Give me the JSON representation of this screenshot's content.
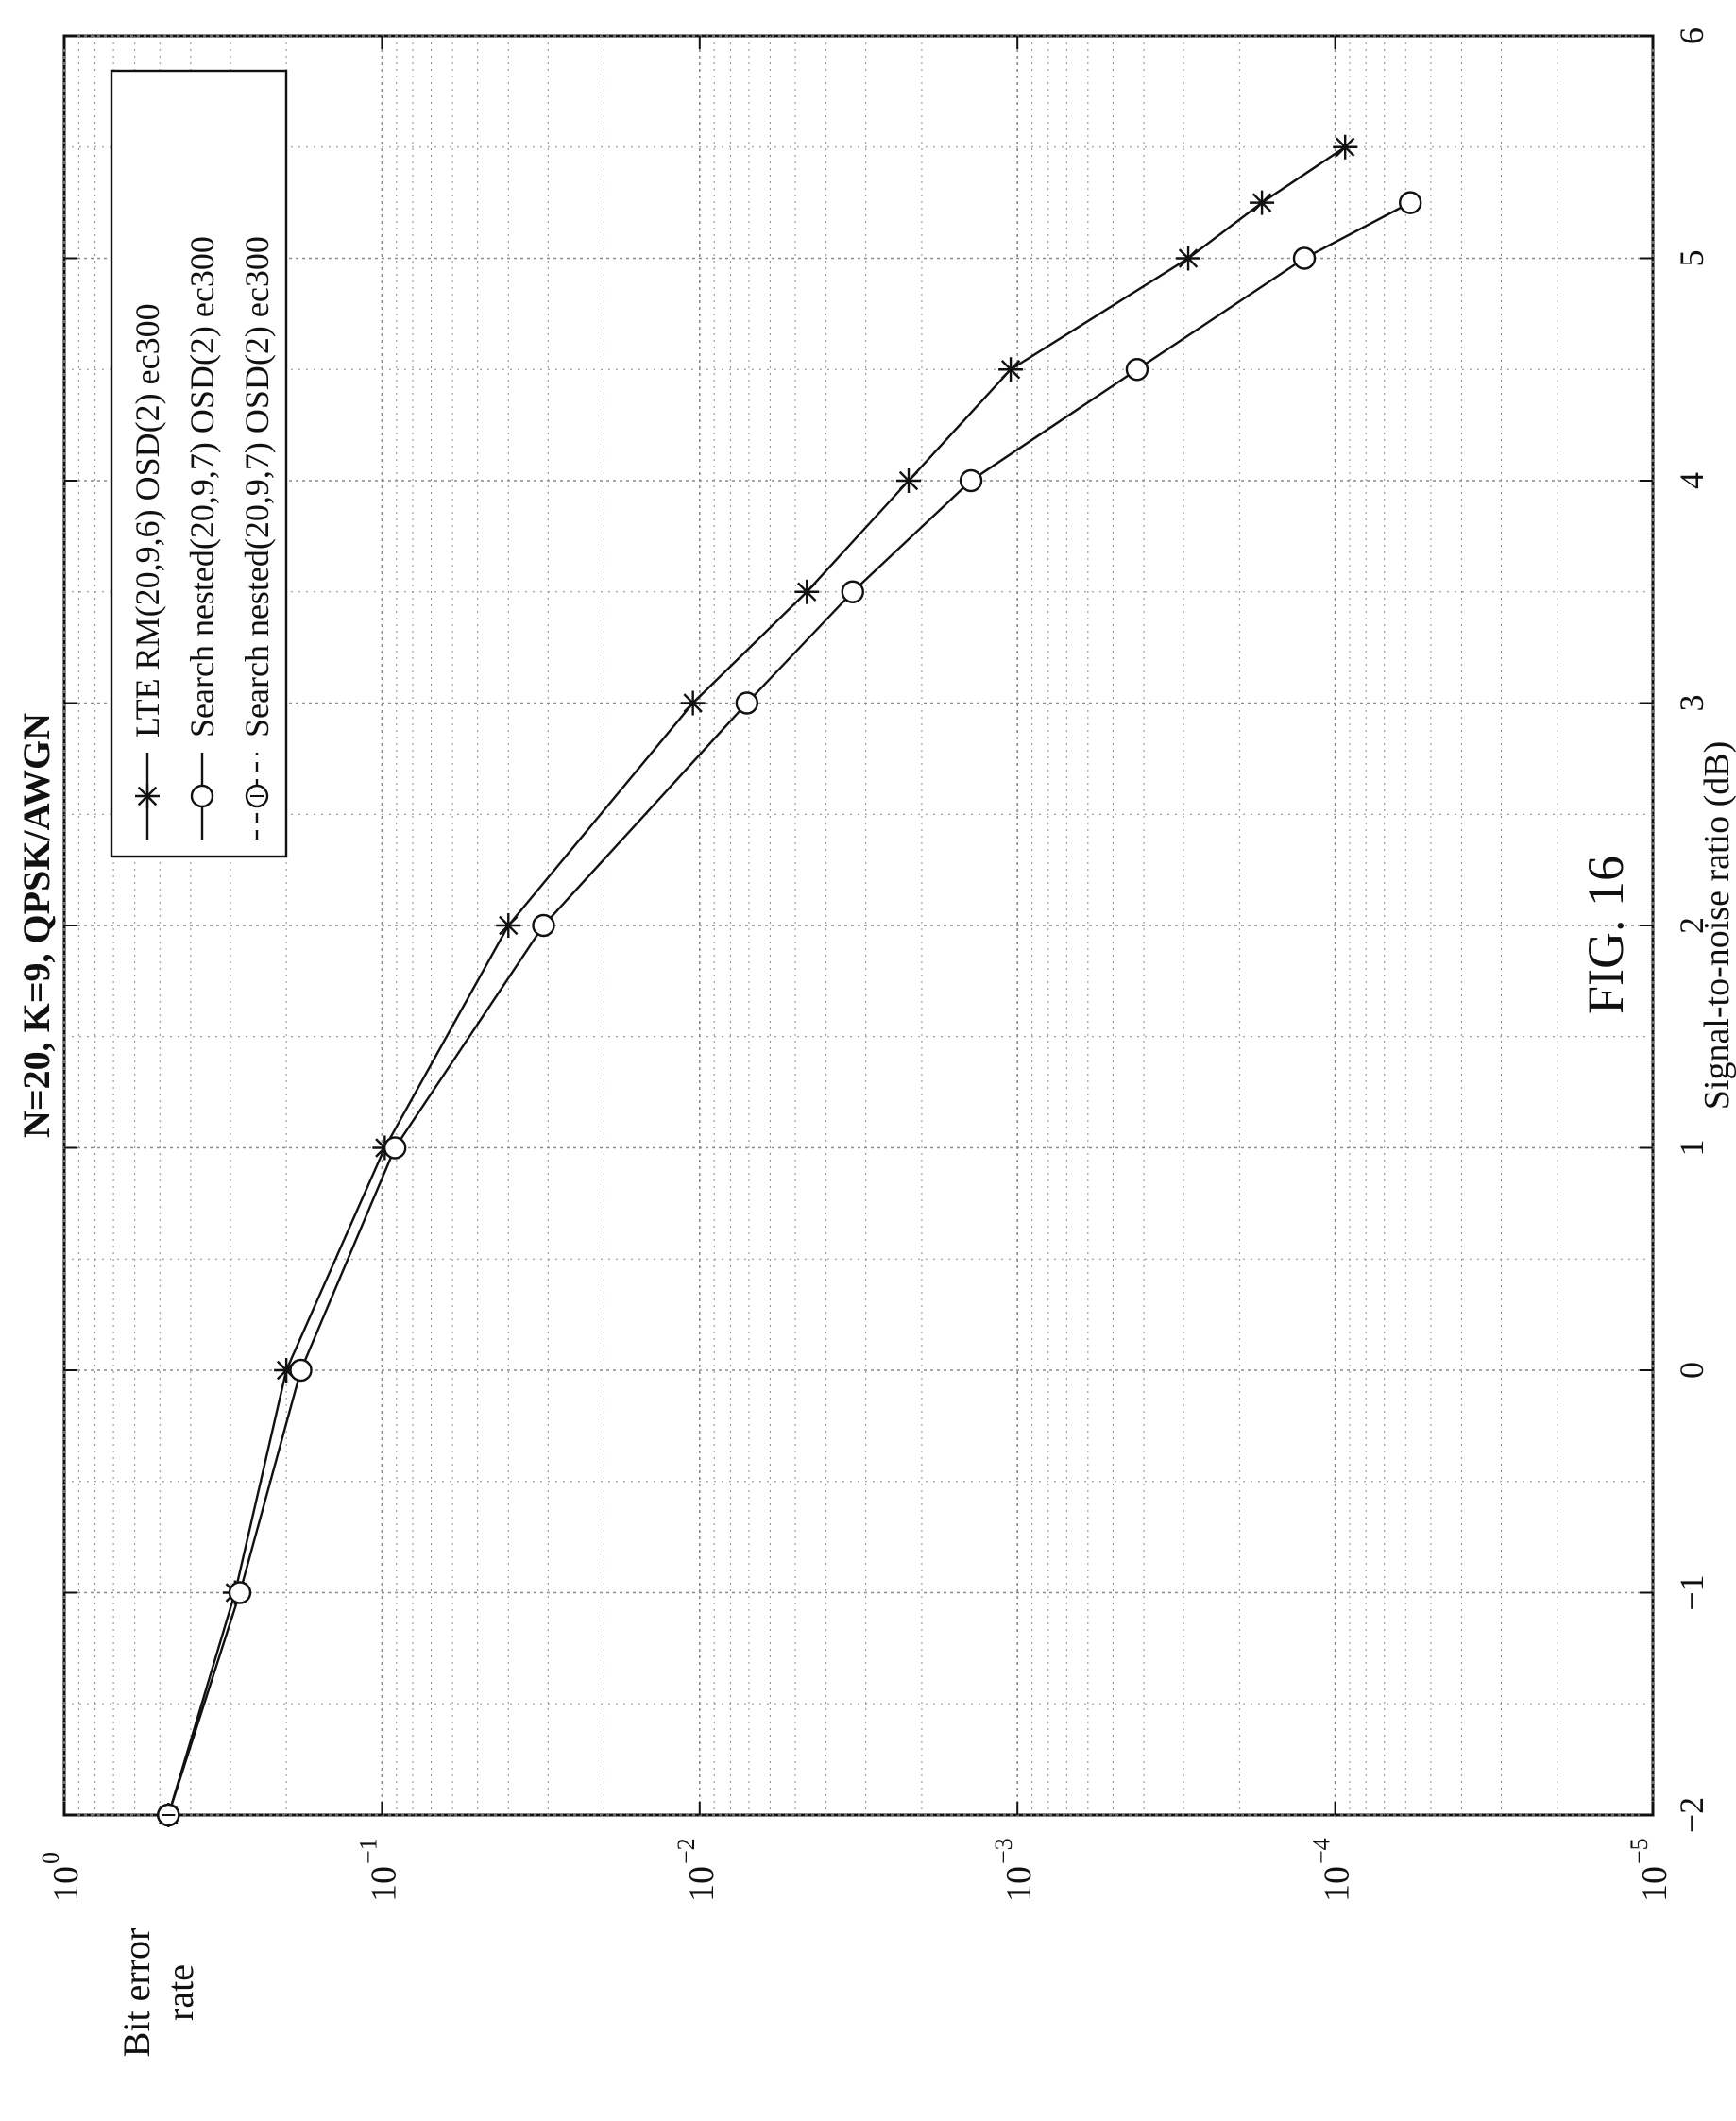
{
  "figure_label": "FIG. 16",
  "colors": {
    "ink": "#111111",
    "grid": "#8a8a8a",
    "background": "#ffffff"
  },
  "chart_data": {
    "type": "line",
    "orientation": "rotated 90 degrees counter-clockwise",
    "title": "N=20, K=9, QPSK/AWGN",
    "xlabel": "Signal-to-noise ratio (dB)",
    "ylabel": "Bit error rate",
    "xlim": [
      -2,
      6
    ],
    "ylim": [
      1e-05,
      1
    ],
    "yscale": "log",
    "grid": true,
    "legend_position": "top-left",
    "x_ticks": [
      -2,
      -1,
      0,
      1,
      2,
      3,
      4,
      5,
      6
    ],
    "x_tick_labels": [
      "−2",
      "−1",
      "0",
      "1",
      "2",
      "3",
      "4",
      "5",
      "6"
    ],
    "y_ticks": [
      1,
      0.1,
      0.01,
      0.001,
      0.0001,
      1e-05
    ],
    "y_tick_base": "10",
    "y_tick_exponents": [
      "0",
      "−1",
      "−2",
      "−3",
      "−4",
      "−5"
    ],
    "series": [
      {
        "name": "LTE RM(20,9,6) OSD(2) ec300",
        "marker": "star",
        "line": "solid",
        "x": [
          -2,
          -1,
          0,
          1,
          2,
          3,
          3.5,
          4,
          4.5,
          5,
          5.25,
          5.5
        ],
        "y": [
          0.47,
          0.29,
          0.2,
          0.098,
          0.04,
          0.0105,
          0.0046,
          0.0022,
          0.00105,
          0.00029,
          0.00017,
          9.3e-05
        ]
      },
      {
        "name": "Search nested(20,9,7) OSD(2) ec300",
        "marker": "circle",
        "line": "solid",
        "x": [
          -2,
          -1,
          0,
          1,
          2,
          3,
          3.5,
          4,
          4.5,
          5,
          5.25
        ],
        "y": [
          0.47,
          0.28,
          0.18,
          0.091,
          0.031,
          0.0071,
          0.0033,
          0.0014,
          0.00042,
          0.000125,
          5.8e-05
        ]
      },
      {
        "name": "Search nested(20,9,7) OSD(2) ec300",
        "marker": "circle-dashed",
        "line": "dashed",
        "x": [
          -2
        ],
        "y": [
          0.47
        ]
      }
    ]
  }
}
